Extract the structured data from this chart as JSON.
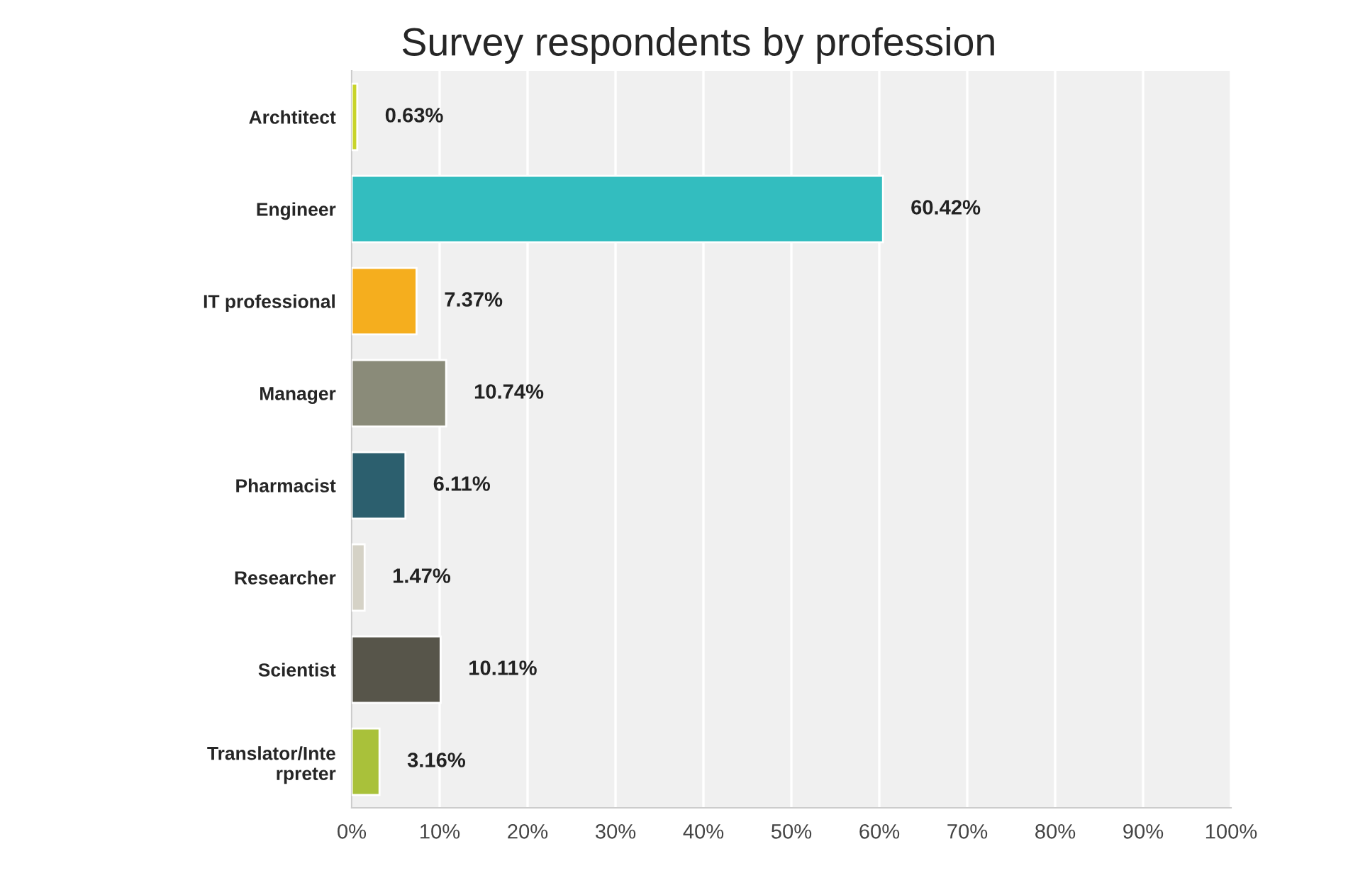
{
  "chart_data": {
    "type": "bar",
    "orientation": "horizontal",
    "title": "Survey respondents by profession",
    "categories": [
      "Archtitect",
      "Engineer",
      "IT professional",
      "Manager",
      "Pharmacist",
      "Researcher",
      "Scientist",
      "Translator/Inte\nrpreter"
    ],
    "values": [
      0.63,
      60.42,
      7.37,
      10.74,
      6.11,
      1.47,
      10.11,
      3.16
    ],
    "colors": [
      "#c8d42a",
      "#33bdbf",
      "#f5ae1e",
      "#8a8b79",
      "#2c5f6e",
      "#d5d2c6",
      "#57554a",
      "#a9c13a"
    ],
    "value_labels": [
      "0.63%",
      "60.42%",
      "7.37%",
      "10.74%",
      "6.11%",
      "1.47%",
      "10.11%",
      "3.16%"
    ],
    "xlim": [
      0,
      100
    ],
    "xticks": [
      {
        "value": 0,
        "label": "0%"
      },
      {
        "value": 10,
        "label": "10%"
      },
      {
        "value": 20,
        "label": "20%"
      },
      {
        "value": 30,
        "label": "30%"
      },
      {
        "value": 40,
        "label": "40%"
      },
      {
        "value": 50,
        "label": "50%"
      },
      {
        "value": 60,
        "label": "60%"
      },
      {
        "value": 70,
        "label": "70%"
      },
      {
        "value": 80,
        "label": "80%"
      },
      {
        "value": 90,
        "label": "90%"
      },
      {
        "value": 100,
        "label": "100%"
      }
    ],
    "grid": "x",
    "legend": false
  }
}
